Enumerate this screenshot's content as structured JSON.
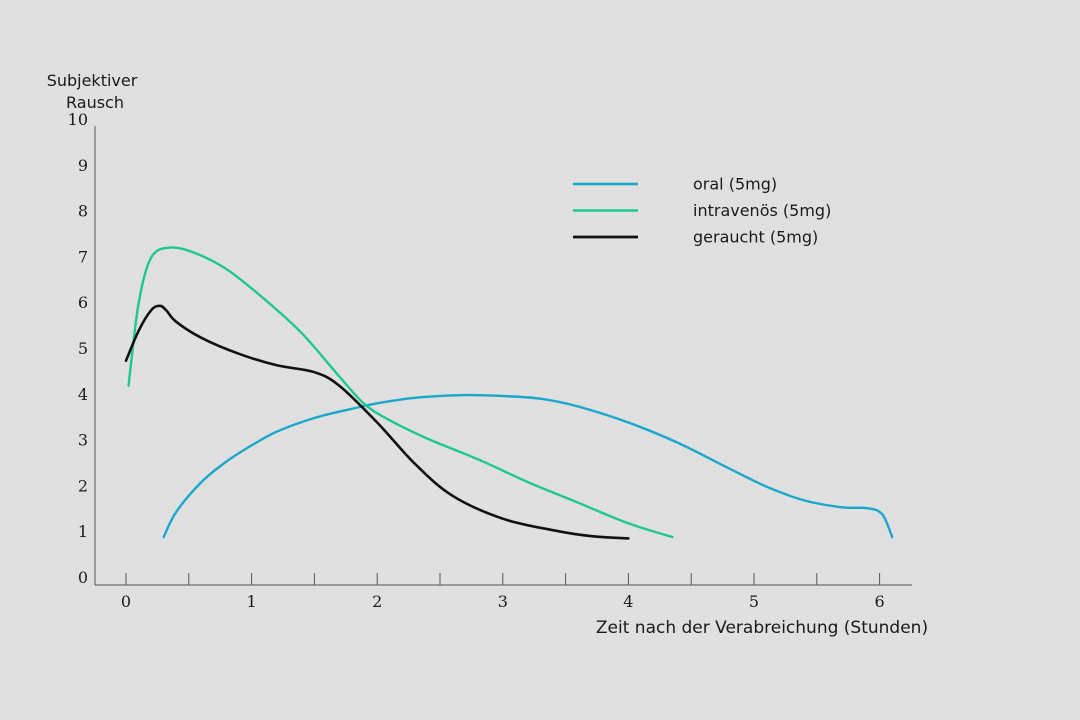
{
  "chart_data": {
    "type": "line",
    "ylabel": [
      "Subjektiver",
      "Rausch"
    ],
    "xlabel": "Zeit nach der Verabreichung (Stunden)",
    "xlim": [
      0,
      6.25
    ],
    "ylim": [
      0,
      10
    ],
    "x_ticks": [
      0,
      0.5,
      1,
      1.5,
      2,
      2.5,
      3,
      3.5,
      4,
      4.5,
      5,
      5.5,
      6
    ],
    "x_tick_labels": [
      "0",
      "1",
      "2",
      "3",
      "4",
      "5",
      "6"
    ],
    "y_tick_labels": [
      "0",
      "1",
      "2",
      "3",
      "4",
      "5",
      "6",
      "7",
      "8",
      "9",
      "10"
    ],
    "grid": false,
    "legend_position": "top-right",
    "series": [
      {
        "name": "oral (5mg)",
        "color": "#1aa7cc",
        "x": [
          0.3,
          0.4,
          0.6,
          0.8,
          1.0,
          1.2,
          1.5,
          1.8,
          2.0,
          2.3,
          2.7,
          3.0,
          3.3,
          3.6,
          4.0,
          4.4,
          4.8,
          5.1,
          5.4,
          5.7,
          5.9,
          6.02,
          6.1
        ],
        "y": [
          1.2,
          1.75,
          2.4,
          2.85,
          3.2,
          3.5,
          3.8,
          4.0,
          4.12,
          4.24,
          4.3,
          4.28,
          4.22,
          4.05,
          3.7,
          3.25,
          2.7,
          2.3,
          2.0,
          1.85,
          1.83,
          1.7,
          1.2
        ]
      },
      {
        "name": "intravenös (5mg)",
        "color": "#1fc98b",
        "x": [
          0.02,
          0.1,
          0.2,
          0.35,
          0.55,
          0.8,
          1.1,
          1.4,
          1.7,
          1.9,
          2.1,
          2.4,
          2.8,
          3.2,
          3.6,
          4.0,
          4.35
        ],
        "y": [
          4.5,
          6.3,
          7.3,
          7.52,
          7.4,
          7.05,
          6.4,
          5.65,
          4.7,
          4.1,
          3.75,
          3.35,
          2.9,
          2.4,
          1.95,
          1.5,
          1.2
        ]
      },
      {
        "name": "geraucht (5mg)",
        "color": "#111111",
        "x": [
          0.0,
          0.1,
          0.2,
          0.27,
          0.32,
          0.4,
          0.6,
          0.9,
          1.2,
          1.5,
          1.7,
          2.0,
          2.3,
          2.6,
          3.0,
          3.4,
          3.7,
          4.0
        ],
        "y": [
          5.05,
          5.7,
          6.15,
          6.25,
          6.15,
          5.9,
          5.55,
          5.2,
          4.95,
          4.8,
          4.5,
          3.7,
          2.8,
          2.1,
          1.6,
          1.35,
          1.22,
          1.17
        ]
      }
    ]
  }
}
